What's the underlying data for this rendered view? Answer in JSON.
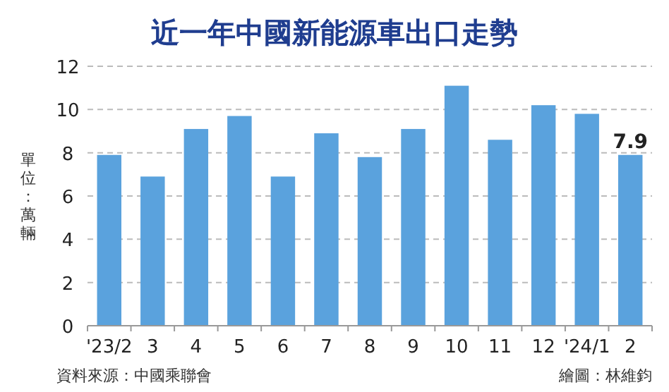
{
  "chart_data": {
    "type": "bar",
    "title": "近一年中國新能源車出口走勢",
    "ylabel": "單位：萬輛",
    "categories": [
      "'23/2",
      "3",
      "4",
      "5",
      "6",
      "7",
      "8",
      "9",
      "10",
      "11",
      "12",
      "'24/1",
      "2"
    ],
    "values": [
      7.9,
      6.9,
      9.1,
      9.7,
      6.9,
      8.9,
      7.8,
      9.1,
      11.1,
      8.6,
      10.2,
      9.8,
      7.9
    ],
    "value_labels": [
      null,
      null,
      null,
      null,
      null,
      null,
      null,
      null,
      null,
      null,
      null,
      null,
      "7.9"
    ],
    "color": "#5aa2dd",
    "ylim": [
      0,
      12
    ],
    "yticks": [
      0,
      2,
      4,
      6,
      8,
      10,
      12
    ],
    "grid": "y",
    "annotations": [
      "資料來源：中國乘聯會",
      "繪圖：林維鈞"
    ]
  }
}
